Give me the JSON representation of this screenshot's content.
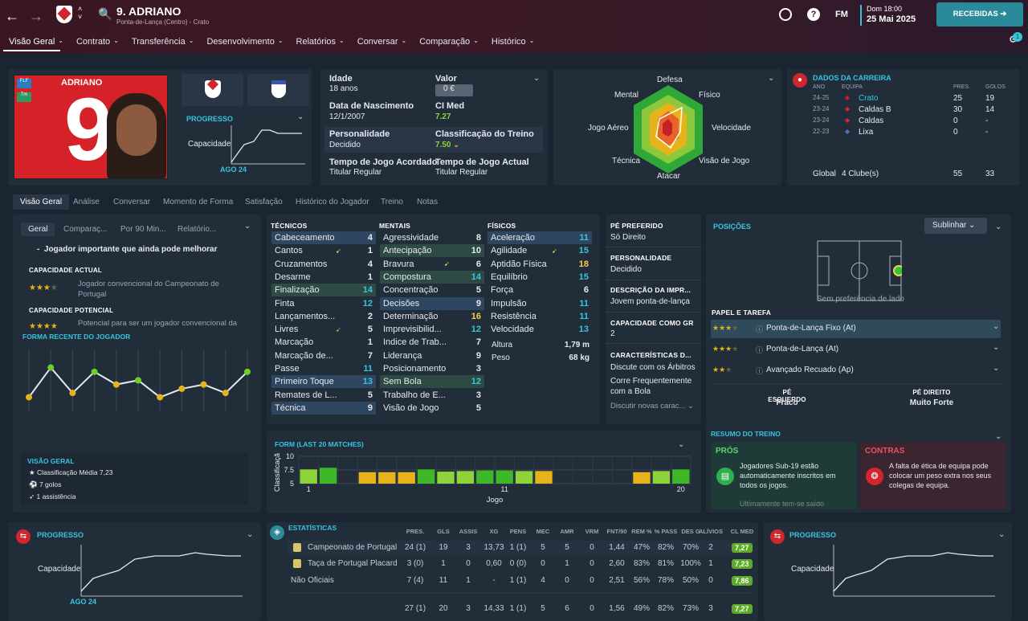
{
  "header": {
    "name": "9. ADRIANO",
    "subtitle": "Ponta-de-Lança (Centro) - Crato",
    "date_top": "Dom 18:00",
    "date_bottom": "25 Mai 2025",
    "inbox_label": "RECEBIDAS",
    "fm": "FM",
    "notif_count": "1"
  },
  "nav": [
    "Visão Geral",
    "Contrato",
    "Transferência",
    "Desenvolvimento",
    "Relatórios",
    "Conversar",
    "Comparação",
    "Histórico"
  ],
  "profile": {
    "shirt_name": "ADRIANO",
    "badge1": "FLF",
    "badge2": "Tm",
    "progress_title": "PROGRESSO",
    "capacity_label": "Capacidade",
    "progress_date": "AGO 24"
  },
  "info": {
    "age_label": "Idade",
    "age": "18 anos",
    "value_label": "Valor",
    "value": "0 €",
    "dob_label": "Data de Nascimento",
    "dob": "12/1/2007",
    "ci_label": "CI Med",
    "ci": "7.27",
    "pers_label": "Personalidade",
    "pers": "Decidido",
    "train_label": "Classificação do Treino",
    "train": "7.50",
    "agreed_label": "Tempo de Jogo Acordado",
    "agreed": "Titular Regular",
    "actual_label": "Tempo de Jogo Actual",
    "actual": "Titular Regular"
  },
  "radar": {
    "top": "Defesa",
    "tl": "Mental",
    "tr": "Físico",
    "l": "Jogo Aéreo",
    "r": "Velocidade",
    "bl": "Técnica",
    "br": "Visão de Jogo",
    "b": "Atacar"
  },
  "career": {
    "title": "DADOS DA CARREIRA",
    "h_year": "ANO",
    "h_team": "EQUIPA",
    "h_apps": "PRES.",
    "h_goals": "GOLOS",
    "rows": [
      {
        "year": "24-25",
        "team": "Crato",
        "apps": "25",
        "goals": "19"
      },
      {
        "year": "23-24",
        "team": "Caldas B",
        "apps": "30",
        "goals": "14"
      },
      {
        "year": "23-24",
        "team": "Caldas",
        "apps": "0",
        "goals": "-"
      },
      {
        "year": "22-23",
        "team": "Lixa",
        "apps": "0",
        "goals": "-"
      }
    ],
    "total_label": "Global",
    "total_clubs": "4 Clube(s)",
    "total_apps": "55",
    "total_goals": "33"
  },
  "subtabs": [
    "Visão Geral",
    "Análise",
    "Conversar",
    "Momento de Forma",
    "Satisfação",
    "Histórico do Jogador",
    "Treino",
    "Notas"
  ],
  "scout": {
    "tabs": [
      "Geral",
      "Comparaç...",
      "Por 90 Min...",
      "Relatório..."
    ],
    "headline": "Jogador importante que ainda pode melhorar",
    "cur_title": "CAPACIDADE ACTUAL",
    "cur_text": "Jogador convencional do Campeonato de Portugal",
    "pot_title": "CAPACIDADE POTENCIAL",
    "pot_text": "Potencial para ser um jogador convencional da",
    "form_title": "FORMA RECENTE DO JOGADOR",
    "form_values": [
      6.6,
      7.3,
      6.7,
      7.2,
      6.9,
      7.0,
      6.6,
      6.8,
      6.9,
      6.7,
      7.2
    ],
    "ov_title": "VISÃO GERAL",
    "ov": [
      "Classificação Média 7,23",
      "7 golos",
      "1 assistência"
    ]
  },
  "attrs": {
    "tech_title": "TÉCNICOS",
    "ment_title": "MENTAIS",
    "phys_title": "FÍSICOS",
    "tech": [
      [
        "Cabeceamento",
        "4"
      ],
      [
        "Cantos",
        "1"
      ],
      [
        "Cruzamentos",
        "4"
      ],
      [
        "Desarme",
        "1"
      ],
      [
        "Finalização",
        "14"
      ],
      [
        "Finta",
        "12"
      ],
      [
        "Lançamentos...",
        "2"
      ],
      [
        "Livres",
        "5"
      ],
      [
        "Marcação",
        "1"
      ],
      [
        "Marcação de...",
        "7"
      ],
      [
        "Passe",
        "11"
      ],
      [
        "Primeiro Toque",
        "13"
      ],
      [
        "Remates de L...",
        "5"
      ],
      [
        "Técnica",
        "9"
      ]
    ],
    "ment": [
      [
        "Agressividade",
        "8"
      ],
      [
        "Antecipação",
        "10"
      ],
      [
        "Bravura",
        "6"
      ],
      [
        "Compostura",
        "14"
      ],
      [
        "Concentração",
        "5"
      ],
      [
        "Decisões",
        "9"
      ],
      [
        "Determinação",
        "16"
      ],
      [
        "Imprevisibilid...",
        "12"
      ],
      [
        "Indice de Trab...",
        "7"
      ],
      [
        "Liderança",
        "9"
      ],
      [
        "Posicionamento",
        "3"
      ],
      [
        "Sem Bola",
        "12"
      ],
      [
        "Trabalho de E...",
        "3"
      ],
      [
        "Visão de Jogo",
        "5"
      ]
    ],
    "phys": [
      [
        "Aceleração",
        "11"
      ],
      [
        "Agilidade",
        "15"
      ],
      [
        "Aptidão Física",
        "18"
      ],
      [
        "Equilíbrio",
        "15"
      ],
      [
        "Força",
        "6"
      ],
      [
        "Impulsão",
        "11"
      ],
      [
        "Resistência",
        "11"
      ],
      [
        "Velocidade",
        "13"
      ]
    ],
    "height_label": "Altura",
    "height": "1,79 m",
    "weight_label": "Peso",
    "weight": "68 kg"
  },
  "details": {
    "foot_t": "PÉ PREFERIDO",
    "foot": "Só Direito",
    "pers_t": "PERSONALIDADE",
    "pers": "Decidido",
    "desc_t": "DESCRIÇÃO DA IMPR...",
    "desc": "Jovem ponta-de-lança",
    "gr_t": "CAPACIDADE COMO GR",
    "gr": "2",
    "traits_t": "CARACTERÍSTICAS D...",
    "traits": [
      "Discute com os Árbitros",
      "Corre Frequentemente com a Bola"
    ],
    "more": "Discutir novas carac..."
  },
  "positions": {
    "title": "POSIÇÕES",
    "highlight": "Sublinhar",
    "side_pref": "Sem preferência de lado",
    "role_title": "PAPEL E TAREFA",
    "roles": [
      "Ponta-de-Lança Fixo (At)",
      "Ponta-de-Lança (At)",
      "Avançado Recuado (Ap)"
    ],
    "lf_label": "PÉ ESQUERDO",
    "lf": "Fraco",
    "rf_label": "PÉ DIREITO",
    "rf": "Muito Forte"
  },
  "chart_data": [
    {
      "type": "bar",
      "title": "FORM (LAST 20 MATCHES)",
      "xlabel": "Jogo",
      "ylabel": "Classificaçã",
      "ylim": [
        5,
        10
      ],
      "yticks": [
        5,
        7.5,
        10
      ],
      "xticks": [
        1,
        11,
        20
      ],
      "x": [
        1,
        2,
        3,
        4,
        5,
        6,
        7,
        8,
        9,
        10,
        11,
        12,
        13,
        14,
        15,
        16,
        17,
        18,
        19,
        20
      ],
      "values": [
        7.6,
        7.9,
        null,
        7.1,
        7.1,
        7.1,
        7.6,
        7.2,
        7.3,
        7.4,
        7.4,
        7.3,
        7.3,
        null,
        null,
        null,
        null,
        7.1,
        7.3,
        7.6
      ],
      "colors": [
        "#8ed33a",
        "#3fb828",
        "",
        "#e6b41a",
        "#e6b41a",
        "#e6b41a",
        "#3fb828",
        "#8ed33a",
        "#8ed33a",
        "#3fb828",
        "#3fb828",
        "#8ed33a",
        "#e6b41a",
        "",
        "",
        "",
        "",
        "#e6b41a",
        "#8ed33a",
        "#3fb828"
      ]
    }
  ],
  "training": {
    "title": "RESUMO DO TREINO",
    "pros": "PRÓS",
    "cons": "CONTRAS",
    "pro_text": "Jogadores Sub-19 estão automaticamente inscritos em todos os jogos.",
    "pro_more": "Ultimamente tem-se saído",
    "con_text": "A falta de ética de equipa pode colocar um peso extra nos seus colegas de equipa."
  },
  "bottom": {
    "prog_title": "PROGRESSO",
    "cap_label": "Capacidade",
    "date": "AGO 24",
    "stats_title": "ESTATÍSTICAS",
    "cols": [
      "PRES.",
      "GLS",
      "ASSIS",
      "XG",
      "PENS",
      "MEC",
      "AMR",
      "VRM",
      "FNT/90",
      "REM %",
      "% PASS",
      "DES G",
      "ALÍVIOS",
      "CL MED"
    ],
    "rows": [
      {
        "name": "Campeonato de Portugal",
        "vals": [
          "24 (1)",
          "19",
          "3",
          "13,73",
          "1 (1)",
          "5",
          "5",
          "0",
          "1,44",
          "47%",
          "82%",
          "70%",
          "2",
          "7,27"
        ]
      },
      {
        "name": "Taça de Portugal Placard",
        "vals": [
          "3 (0)",
          "1",
          "0",
          "0,60",
          "0 (0)",
          "0",
          "1",
          "0",
          "2,60",
          "83%",
          "81%",
          "100%",
          "1",
          "7,23"
        ]
      },
      {
        "name": "Não Oficiais",
        "vals": [
          "7 (4)",
          "11",
          "1",
          "-",
          "1 (1)",
          "4",
          "0",
          "0",
          "2,51",
          "56%",
          "78%",
          "50%",
          "0",
          "7,86"
        ]
      }
    ],
    "total": [
      "27 (1)",
      "20",
      "3",
      "14,33",
      "1 (1)",
      "5",
      "6",
      "0",
      "1,56",
      "49%",
      "82%",
      "73%",
      "3",
      "7,27"
    ]
  }
}
